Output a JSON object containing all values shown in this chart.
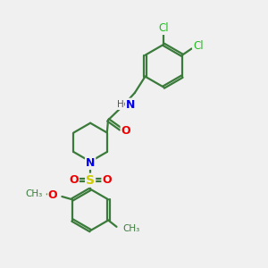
{
  "bg_color": "#f0f0f0",
  "atom_colors": {
    "C": "#3a7a3a",
    "N": "#0000ee",
    "O": "#ee0000",
    "S": "#cccc00",
    "Cl": "#22bb22",
    "H": "#555555"
  },
  "bond_color": "#3a7a3a",
  "line_width": 1.6,
  "figsize": [
    3.0,
    3.0
  ],
  "dpi": 100
}
